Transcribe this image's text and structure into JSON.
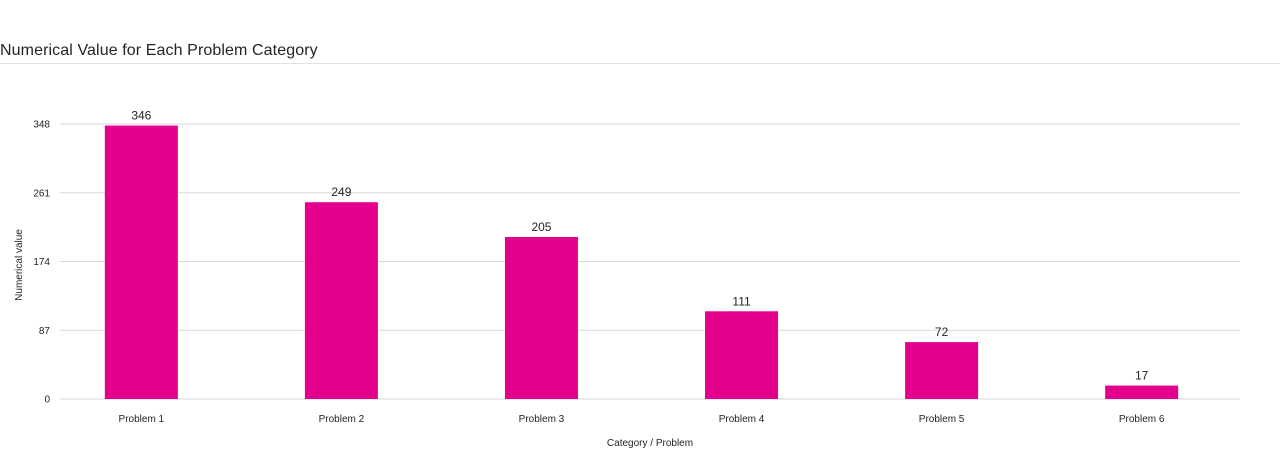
{
  "chart_data": {
    "type": "bar",
    "title": "Numerical Value for Each Problem Category",
    "xlabel": "Category / Problem",
    "ylabel": "Numerical value",
    "categories": [
      "Problem 1",
      "Problem 2",
      "Problem 3",
      "Problem 4",
      "Problem 5",
      "Problem 6"
    ],
    "values": [
      346,
      249,
      205,
      111,
      72,
      17
    ],
    "yticks": [
      0,
      87,
      174,
      261,
      348
    ],
    "ylim": [
      0,
      348
    ],
    "grid": true,
    "legend": "none",
    "bar_color": "#e3008c",
    "gridline_color": "#d9d9d9"
  }
}
